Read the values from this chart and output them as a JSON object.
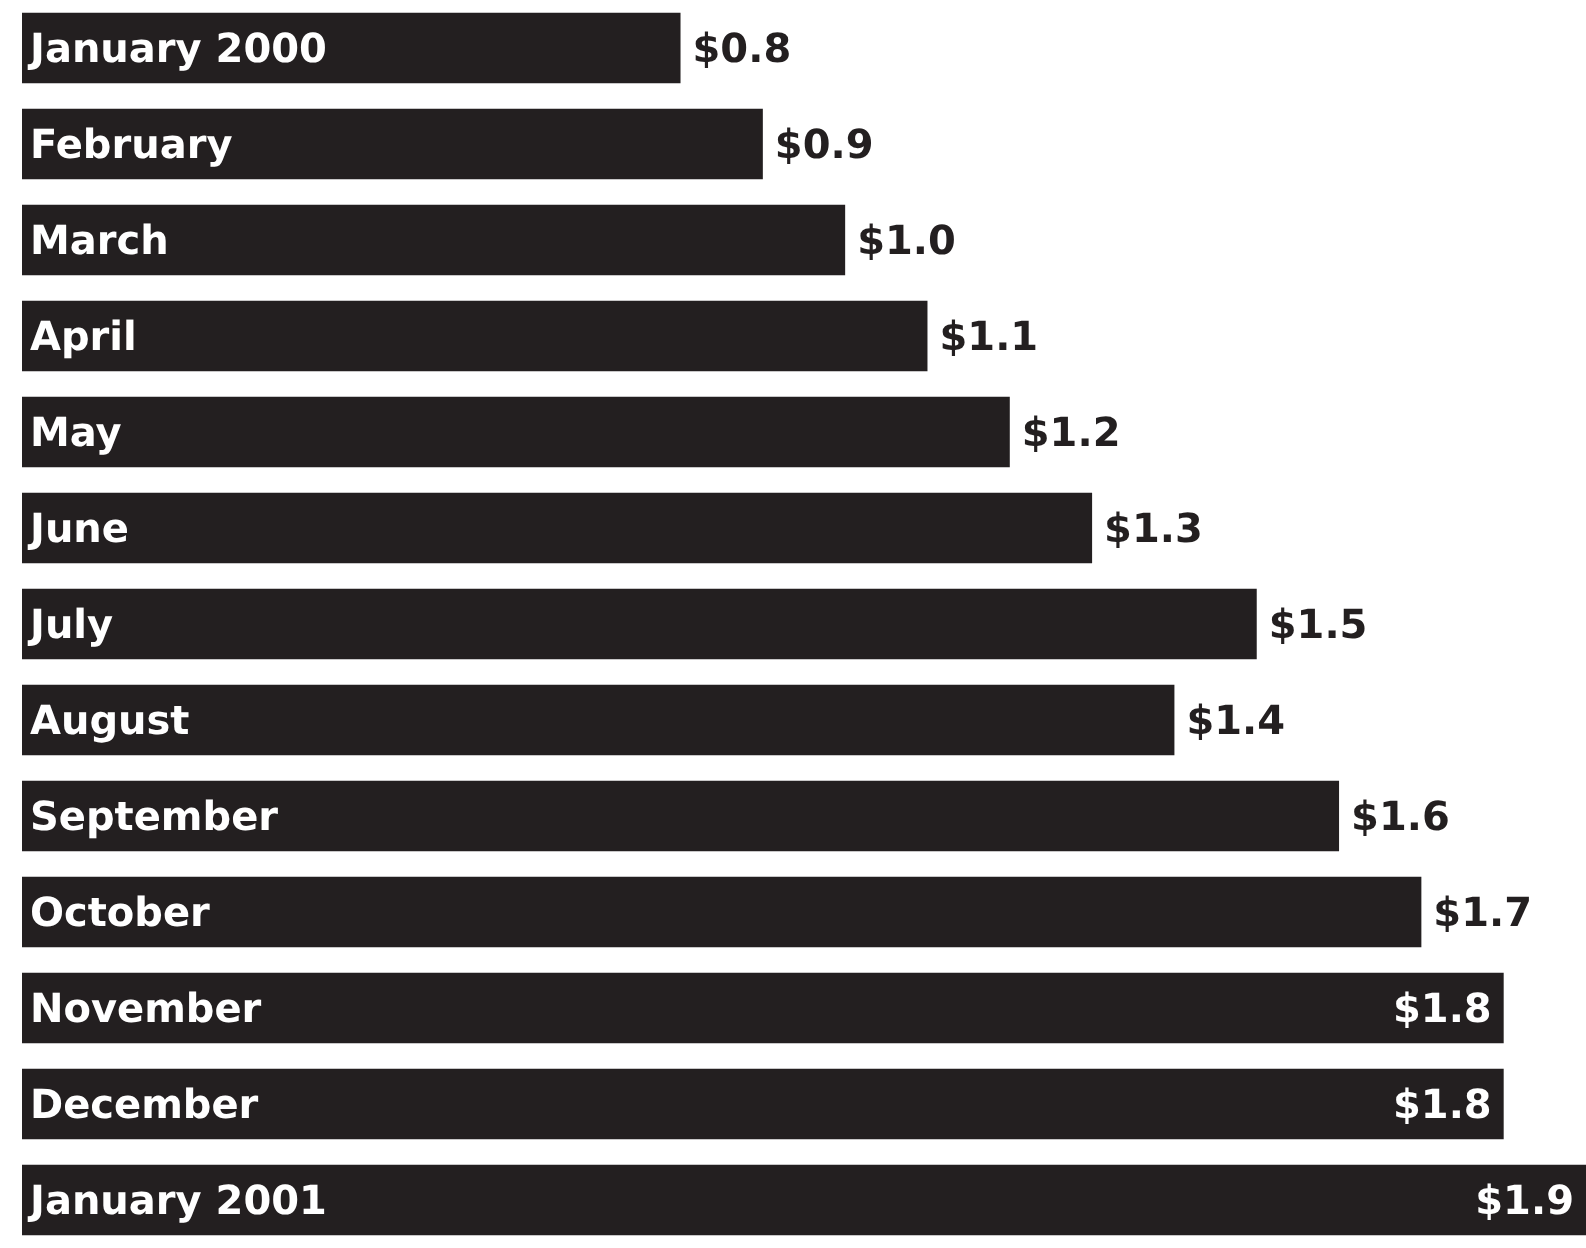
{
  "chart_data": {
    "type": "bar",
    "orientation": "horizontal",
    "tick_labels": "y",
    "color": "#231f20",
    "categories": [
      "January 2000",
      "February",
      "March",
      "April",
      "May",
      "June",
      "July",
      "August",
      "September",
      "October",
      "November",
      "December",
      "January 2001"
    ],
    "values": [
      0.8,
      0.9,
      1.0,
      1.1,
      1.2,
      1.3,
      1.5,
      1.4,
      1.6,
      1.7,
      1.8,
      1.8,
      1.9
    ],
    "value_labels": [
      "$0.8",
      "$0.9",
      "$1.0",
      "$1.1",
      "$1.2",
      "$1.3",
      "$1.5",
      "$1.4",
      "$1.6",
      "$1.7",
      "$1.8",
      "$1.8",
      "$1.9"
    ]
  }
}
